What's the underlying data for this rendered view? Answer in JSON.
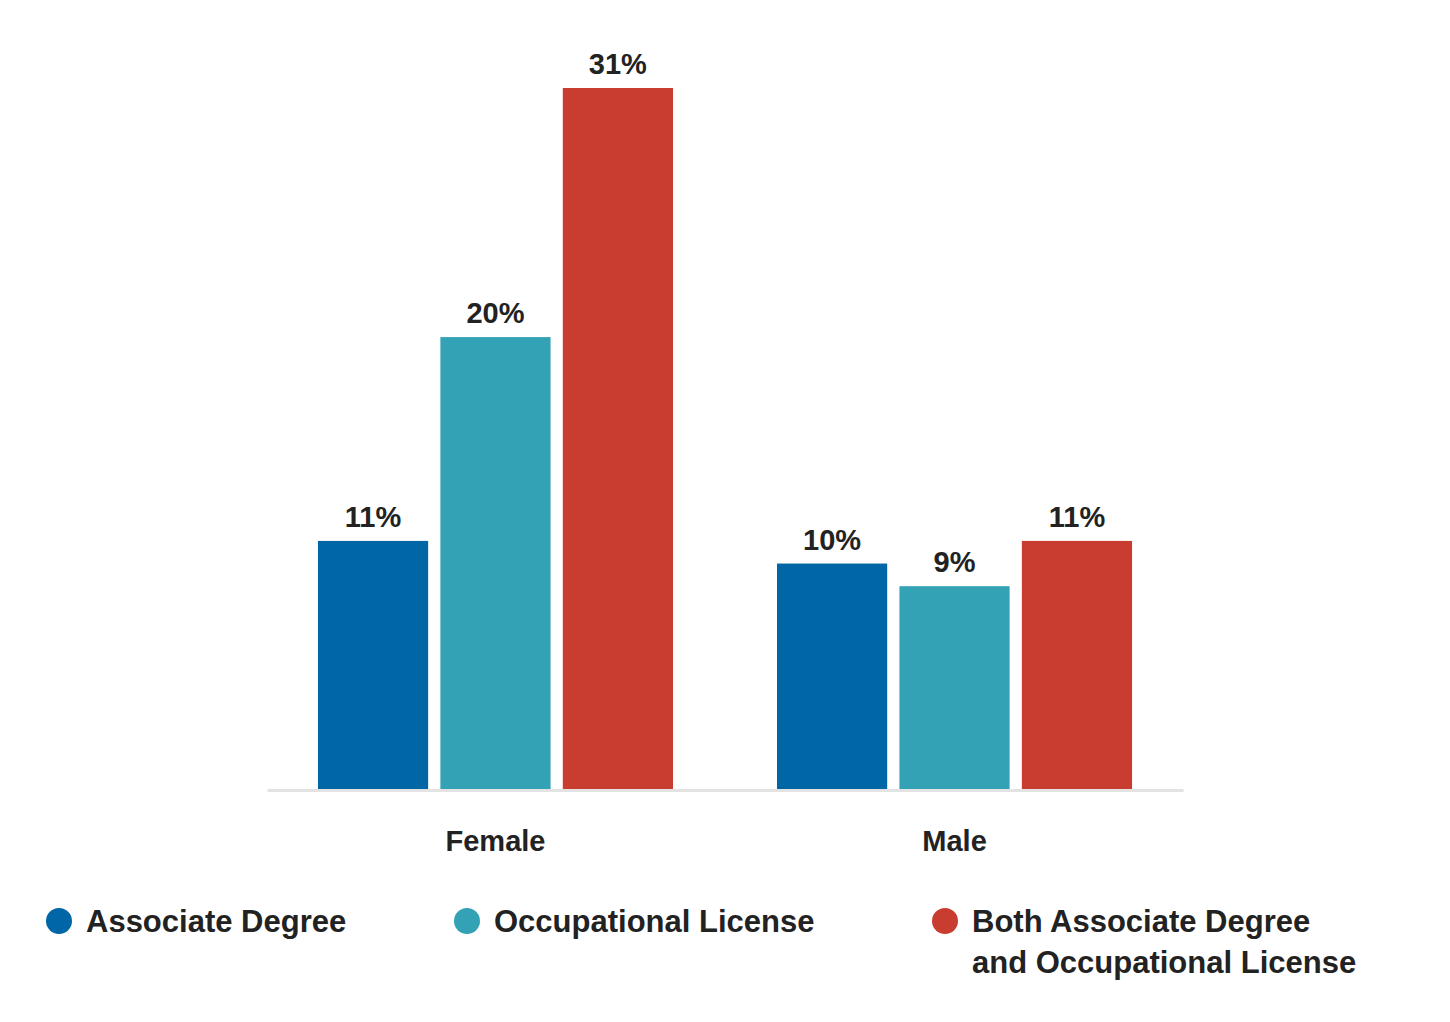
{
  "chart_data": {
    "type": "bar",
    "categories": [
      "Female",
      "Male"
    ],
    "series": [
      {
        "name": "Associate Degree",
        "color": "#0066a6",
        "values": [
          11,
          10
        ],
        "value_labels": [
          "11%",
          "10%"
        ]
      },
      {
        "name": "Occupational License",
        "color": "#33a2b5",
        "values": [
          20,
          9
        ],
        "value_labels": [
          "20%",
          "9%"
        ]
      },
      {
        "name": "Both Associate Degree and Occupational License",
        "color": "#c93c30",
        "values": [
          31,
          11
        ],
        "value_labels": [
          "31%",
          "11%"
        ]
      }
    ],
    "ylim": [
      0,
      31
    ],
    "data_labels": true,
    "tick_labels": "x",
    "legend": "bottom"
  }
}
